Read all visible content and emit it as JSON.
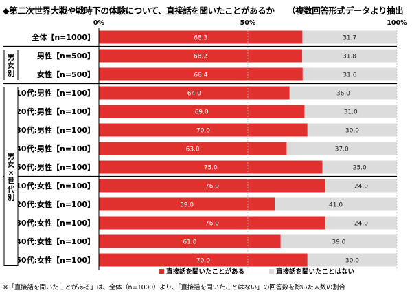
{
  "title": "◆第二次世界大戦や戦時下の体験について、直接話を聞いたことがあるか",
  "title_note": "（複数回答形式データより抽出",
  "footnote": "※「直接話を聞いたことがある」は、全体（n=1000）より、「直接話を聞いたことはない」の回答数を除いた人数の割合",
  "colors": {
    "heard": "#e0312f",
    "not_heard": "#dcdcdc",
    "frame": "#000000",
    "grid": "#bdbdbd"
  },
  "chart_data": {
    "type": "bar",
    "orientation": "horizontal",
    "stacked": true,
    "title": "◆第二次世界大戦や戦時下の体験について、直接話を聞いたことがあるか",
    "xlim": [
      0,
      100
    ],
    "ticks": [
      "0%",
      "50%",
      "100%"
    ],
    "categories": [
      "全体【n=1000】",
      "男性【n=500】",
      "女性【n=500】",
      "10代:男性【n=100】",
      "20代:男性【n=100】",
      "30代:男性【n=100】",
      "40代:男性【n=100】",
      "50代:男性【n=100】",
      "10代:女性【n=100】",
      "20代:女性【n=100】",
      "30代:女性【n=100】",
      "40代:女性【n=100】",
      "50代:女性【n=100】"
    ],
    "series": [
      {
        "name": "直接話を聞いたことがある",
        "values": [
          68.3,
          68.2,
          68.4,
          64.0,
          69.0,
          70.0,
          63.0,
          75.0,
          76.0,
          59.0,
          76.0,
          61.0,
          70.0
        ],
        "labels": [
          "68.3",
          "68.2",
          "68.4",
          "64.0",
          "69.0",
          "70.0",
          "63.0",
          "75.0",
          "76.0",
          "59.0",
          "76.0",
          "61.0",
          "70.0"
        ]
      },
      {
        "name": "直接話を聞いたことはない",
        "values": [
          31.7,
          31.8,
          31.6,
          36.0,
          31.0,
          30.0,
          37.0,
          25.0,
          24.0,
          41.0,
          24.0,
          39.0,
          30.0
        ],
        "labels": [
          "31.7",
          "31.8",
          "31.6",
          "36.0",
          "31.0",
          "30.0",
          "37.0",
          "25.0",
          "24.0",
          "41.0",
          "24.0",
          "39.0",
          "30.0"
        ]
      }
    ],
    "groups": [
      {
        "label": "男女別",
        "from": 1,
        "to": 2
      },
      {
        "label": "男女×世代別",
        "from": 3,
        "to": 12
      }
    ],
    "legend": [
      "直接話を聞いたことがある",
      "直接話を聞いたことはない"
    ],
    "legend_position": "bottom"
  }
}
